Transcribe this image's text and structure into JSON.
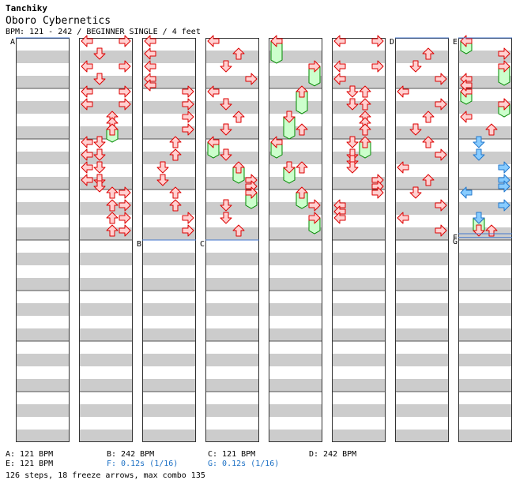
{
  "header": {
    "artist": "Tanchiky",
    "title": "Oboro Cybernetics",
    "info": "BPM: 121 - 242 / BEGINNER SINGLE / 4 feet"
  },
  "colors": {
    "stripe": "#cccccc",
    "arrow_fill": "#ffd0d0",
    "arrow_stroke": "#dd0000",
    "freeze_fill": "#ccffcc",
    "freeze_stroke": "#008800",
    "shock_fill": "#88ccff",
    "shock_stroke": "#2277cc",
    "bpm_line": "#4477cc",
    "stop_text": "#1a6fc4"
  },
  "chart_data": {
    "type": "step-chart",
    "columns": 8,
    "measures_per_column": 8,
    "lanes": [
      "left",
      "down",
      "up",
      "right"
    ],
    "markers": [
      {
        "label": "A",
        "column": 0,
        "beat": 0
      },
      {
        "label": "B",
        "column": 2,
        "beat": 16
      },
      {
        "label": "C",
        "column": 3,
        "beat": 16
      },
      {
        "label": "D",
        "column": 6,
        "beat": 0
      },
      {
        "label": "E",
        "column": 7,
        "beat": 0
      },
      {
        "label": "F",
        "column": 7,
        "beat": 15.5
      },
      {
        "label": "G",
        "column": 7,
        "beat": 15.8
      }
    ],
    "notes": [
      {
        "c": 1,
        "b": 0.25,
        "l": 0
      },
      {
        "c": 1,
        "b": 0.25,
        "l": 3
      },
      {
        "c": 1,
        "b": 1.25,
        "l": 1
      },
      {
        "c": 1,
        "b": 2.25,
        "l": 0
      },
      {
        "c": 1,
        "b": 2.25,
        "l": 3
      },
      {
        "c": 1,
        "b": 3.25,
        "l": 1
      },
      {
        "c": 1,
        "b": 4.25,
        "l": 0
      },
      {
        "c": 1,
        "b": 4.25,
        "l": 3
      },
      {
        "c": 1,
        "b": 5.25,
        "l": 0
      },
      {
        "c": 1,
        "b": 5.25,
        "l": 3
      },
      {
        "c": 1,
        "b": 6.25,
        "l": 2
      },
      {
        "c": 1,
        "b": 6.75,
        "l": 2
      },
      {
        "c": 1,
        "b": 7.25,
        "l": 2
      },
      {
        "c": 1,
        "b": 8.25,
        "l": 0
      },
      {
        "c": 1,
        "b": 8.25,
        "l": 1
      },
      {
        "c": 1,
        "b": 9.25,
        "l": 0
      },
      {
        "c": 1,
        "b": 9.25,
        "l": 1
      },
      {
        "c": 1,
        "b": 10.25,
        "l": 0
      },
      {
        "c": 1,
        "b": 10.25,
        "l": 1
      },
      {
        "c": 1,
        "b": 11.25,
        "l": 0
      },
      {
        "c": 1,
        "b": 11.25,
        "l": 1
      },
      {
        "c": 1,
        "b": 11.75,
        "l": 1
      },
      {
        "c": 1,
        "b": 12.25,
        "l": 3
      },
      {
        "c": 1,
        "b": 12.25,
        "l": 2
      },
      {
        "c": 1,
        "b": 13.25,
        "l": 3
      },
      {
        "c": 1,
        "b": 13.25,
        "l": 2
      },
      {
        "c": 1,
        "b": 14.25,
        "l": 3
      },
      {
        "c": 1,
        "b": 14.25,
        "l": 2
      },
      {
        "c": 1,
        "b": 15.25,
        "l": 3
      },
      {
        "c": 1,
        "b": 15.25,
        "l": 2
      },
      {
        "c": 2,
        "b": 0.25,
        "l": 0
      },
      {
        "c": 2,
        "b": 1.25,
        "l": 0
      },
      {
        "c": 2,
        "b": 2.25,
        "l": 0
      },
      {
        "c": 2,
        "b": 3.25,
        "l": 0
      },
      {
        "c": 2,
        "b": 3.75,
        "l": 0
      },
      {
        "c": 2,
        "b": 4.25,
        "l": 3
      },
      {
        "c": 2,
        "b": 5.25,
        "l": 3
      },
      {
        "c": 2,
        "b": 6.25,
        "l": 3
      },
      {
        "c": 2,
        "b": 7.25,
        "l": 3
      },
      {
        "c": 2,
        "b": 8.25,
        "l": 2
      },
      {
        "c": 2,
        "b": 9.25,
        "l": 2
      },
      {
        "c": 2,
        "b": 10.25,
        "l": 1
      },
      {
        "c": 2,
        "b": 11.25,
        "l": 1
      },
      {
        "c": 2,
        "b": 12.25,
        "l": 2
      },
      {
        "c": 2,
        "b": 13.25,
        "l": 2
      },
      {
        "c": 2,
        "b": 14.25,
        "l": 3
      },
      {
        "c": 2,
        "b": 15.25,
        "l": 3
      },
      {
        "c": 3,
        "b": 0.25,
        "l": 0
      },
      {
        "c": 3,
        "b": 1.25,
        "l": 2
      },
      {
        "c": 3,
        "b": 2.25,
        "l": 1
      },
      {
        "c": 3,
        "b": 3.25,
        "l": 3
      },
      {
        "c": 3,
        "b": 4.25,
        "l": 0
      },
      {
        "c": 3,
        "b": 5.25,
        "l": 1
      },
      {
        "c": 3,
        "b": 6.25,
        "l": 2
      },
      {
        "c": 3,
        "b": 7.25,
        "l": 1
      },
      {
        "c": 3,
        "b": 9.25,
        "l": 1
      },
      {
        "c": 3,
        "b": 11.25,
        "l": 3
      },
      {
        "c": 3,
        "b": 11.75,
        "l": 3
      },
      {
        "c": 3,
        "b": 12.25,
        "l": 3
      },
      {
        "c": 3,
        "b": 13.25,
        "l": 1
      },
      {
        "c": 3,
        "b": 14.25,
        "l": 1
      },
      {
        "c": 3,
        "b": 15.25,
        "l": 2
      },
      {
        "c": 4,
        "b": 7.25,
        "l": 2
      },
      {
        "c": 4,
        "b": 10.25,
        "l": 2
      },
      {
        "c": 4,
        "b": 13.25,
        "l": 3
      },
      {
        "c": 5,
        "b": 0.25,
        "l": 0
      },
      {
        "c": 5,
        "b": 0.25,
        "l": 3
      },
      {
        "c": 5,
        "b": 2.25,
        "l": 0
      },
      {
        "c": 5,
        "b": 2.25,
        "l": 3
      },
      {
        "c": 5,
        "b": 3.25,
        "l": 0
      },
      {
        "c": 5,
        "b": 4.25,
        "l": 1
      },
      {
        "c": 5,
        "b": 4.25,
        "l": 2
      },
      {
        "c": 5,
        "b": 5.25,
        "l": 1
      },
      {
        "c": 5,
        "b": 5.25,
        "l": 2
      },
      {
        "c": 5,
        "b": 6.25,
        "l": 2
      },
      {
        "c": 5,
        "b": 6.75,
        "l": 2
      },
      {
        "c": 5,
        "b": 7.25,
        "l": 2
      },
      {
        "c": 5,
        "b": 8.25,
        "l": 1
      },
      {
        "c": 5,
        "b": 9.25,
        "l": 1
      },
      {
        "c": 5,
        "b": 9.75,
        "l": 1
      },
      {
        "c": 5,
        "b": 10.25,
        "l": 1
      },
      {
        "c": 5,
        "b": 11.25,
        "l": 3
      },
      {
        "c": 5,
        "b": 11.75,
        "l": 3
      },
      {
        "c": 5,
        "b": 12.25,
        "l": 3
      },
      {
        "c": 5,
        "b": 13.25,
        "l": 0
      },
      {
        "c": 5,
        "b": 13.75,
        "l": 0
      },
      {
        "c": 5,
        "b": 14.25,
        "l": 0
      },
      {
        "c": 6,
        "b": 1.25,
        "l": 2
      },
      {
        "c": 6,
        "b": 2.25,
        "l": 1
      },
      {
        "c": 6,
        "b": 3.25,
        "l": 3
      },
      {
        "c": 6,
        "b": 4.25,
        "l": 0
      },
      {
        "c": 6,
        "b": 5.25,
        "l": 3
      },
      {
        "c": 6,
        "b": 6.25,
        "l": 2
      },
      {
        "c": 6,
        "b": 7.25,
        "l": 1
      },
      {
        "c": 6,
        "b": 8.25,
        "l": 2
      },
      {
        "c": 6,
        "b": 9.25,
        "l": 3
      },
      {
        "c": 6,
        "b": 10.25,
        "l": 0
      },
      {
        "c": 6,
        "b": 11.25,
        "l": 2
      },
      {
        "c": 6,
        "b": 12.25,
        "l": 1
      },
      {
        "c": 6,
        "b": 13.25,
        "l": 3
      },
      {
        "c": 6,
        "b": 14.25,
        "l": 0
      },
      {
        "c": 6,
        "b": 15.25,
        "l": 3
      },
      {
        "c": 7,
        "b": 1.25,
        "l": 3
      },
      {
        "c": 7,
        "b": 3.25,
        "l": 0
      },
      {
        "c": 7,
        "b": 3.75,
        "l": 0
      },
      {
        "c": 7,
        "b": 5.25,
        "l": 3
      },
      {
        "c": 7,
        "b": 6.25,
        "l": 0
      },
      {
        "c": 7,
        "b": 7.25,
        "l": 2
      },
      {
        "c": 7,
        "b": 15.25,
        "l": 2
      },
      {
        "c": 7,
        "b": 15.25,
        "l": 1
      }
    ],
    "shocks": [
      {
        "c": 7,
        "b": 8.25,
        "l": 1
      },
      {
        "c": 7,
        "b": 9.25,
        "l": 1
      },
      {
        "c": 7,
        "b": 10.25,
        "l": 3
      },
      {
        "c": 7,
        "b": 11.25,
        "l": 3
      },
      {
        "c": 7,
        "b": 11.75,
        "l": 3
      },
      {
        "c": 7,
        "b": 12.25,
        "l": 0
      },
      {
        "c": 7,
        "b": 13.25,
        "l": 3
      },
      {
        "c": 7,
        "b": 14.25,
        "l": 1
      }
    ],
    "freezes": [
      {
        "c": 1,
        "b": 7.25,
        "e": 8.25,
        "l": 2
      },
      {
        "c": 3,
        "b": 8.25,
        "e": 9.5,
        "l": 0
      },
      {
        "c": 3,
        "b": 10.25,
        "e": 11.5,
        "l": 2
      },
      {
        "c": 3,
        "b": 12.25,
        "e": 13.5,
        "l": 3
      },
      {
        "c": 4,
        "b": 0.25,
        "e": 2.0,
        "l": 0
      },
      {
        "c": 4,
        "b": 2.25,
        "e": 3.8,
        "l": 3
      },
      {
        "c": 4,
        "b": 4.25,
        "e": 6.0,
        "l": 2
      },
      {
        "c": 4,
        "b": 6.25,
        "e": 8.0,
        "l": 1
      },
      {
        "c": 4,
        "b": 8.25,
        "e": 9.5,
        "l": 0
      },
      {
        "c": 4,
        "b": 10.25,
        "e": 11.5,
        "l": 1
      },
      {
        "c": 4,
        "b": 12.25,
        "e": 13.5,
        "l": 2
      },
      {
        "c": 4,
        "b": 14.25,
        "e": 15.5,
        "l": 3
      },
      {
        "c": 5,
        "b": 8.25,
        "e": 9.5,
        "l": 2
      },
      {
        "c": 7,
        "b": 0.25,
        "e": 1.25,
        "l": 0
      },
      {
        "c": 7,
        "b": 2.25,
        "e": 3.75,
        "l": 3
      },
      {
        "c": 7,
        "b": 4.25,
        "e": 5.25,
        "l": 0
      },
      {
        "c": 7,
        "b": 5.25,
        "e": 6.25,
        "l": 3
      },
      {
        "c": 7,
        "b": 14.25,
        "e": 15.5,
        "l": 1
      }
    ]
  },
  "legend": [
    {
      "text": "A: 121 BPM",
      "stop": false
    },
    {
      "text": "B: 242 BPM",
      "stop": false
    },
    {
      "text": "C: 121 BPM",
      "stop": false
    },
    {
      "text": "D: 242 BPM",
      "stop": false
    },
    {
      "text": "E: 121 BPM",
      "stop": false
    },
    {
      "text": "F: 0.12s (1/16)",
      "stop": true
    },
    {
      "text": "G: 0.12s (1/16)",
      "stop": true
    }
  ],
  "summary": "126 steps, 18 freeze arrows, max combo 135"
}
